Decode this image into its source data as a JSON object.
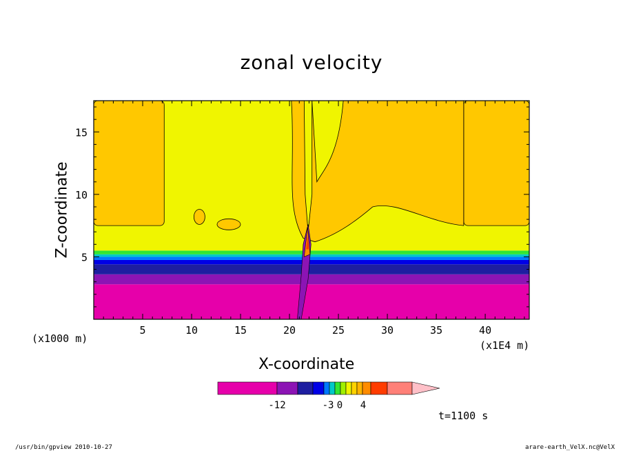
{
  "chart_data": {
    "type": "heatmap",
    "title": "zonal velocity",
    "xlabel": "X-coordinate",
    "ylabel": "Z-coordinate",
    "x_unit_left": "(x1000 m)",
    "x_unit_right": "(x1E4 m)",
    "xlim": [
      0,
      44.5
    ],
    "ylim": [
      0,
      17.5
    ],
    "x_ticks": [
      "5",
      "10",
      "15",
      "20",
      "25",
      "30",
      "35",
      "40"
    ],
    "y_ticks": [
      "5",
      "10",
      "15"
    ],
    "x_tick_values": [
      5,
      10,
      15,
      20,
      25,
      30,
      35,
      40
    ],
    "y_tick_values": [
      5,
      10,
      15
    ],
    "layers": [
      {
        "z_from": 0,
        "z_to": 2.8,
        "color": "#e600aa"
      },
      {
        "z_from": 2.8,
        "z_to": 3.6,
        "color": "#8c14b4"
      },
      {
        "z_from": 3.6,
        "z_to": 4.4,
        "color": "#1e1ea0"
      },
      {
        "z_from": 4.4,
        "z_to": 4.75,
        "color": "#0000e6"
      },
      {
        "z_from": 4.75,
        "z_to": 5.0,
        "color": "#0078ff"
      },
      {
        "z_from": 5.0,
        "z_to": 5.2,
        "color": "#00c8c8"
      },
      {
        "z_from": 5.2,
        "z_to": 5.5,
        "color": "#32e632"
      },
      {
        "z_from": 5.5,
        "z_to": 17.5,
        "color": "#f0f500"
      }
    ],
    "orange_regions": [
      {
        "x": [
          0,
          7.2
        ],
        "z": [
          7.5,
          17.5
        ]
      },
      {
        "x": [
          37.8,
          44.5
        ],
        "z": [
          7.5,
          17.5
        ]
      }
    ],
    "colorbar": {
      "colors": [
        "#e600aa",
        "#8c14b4",
        "#1e1ea0",
        "#0000e6",
        "#0078ff",
        "#00c8c8",
        "#32e632",
        "#a0f000",
        "#f0f500",
        "#ffd200",
        "#ffb400",
        "#ff8c00",
        "#ff3c00",
        "#ff8078",
        "#ffc0c8"
      ],
      "labels": [
        "-12",
        "-3",
        "0",
        "4"
      ]
    },
    "annotation": "t=1100 s"
  },
  "footer": {
    "left": "/usr/bin/gpview   2010-10-27",
    "right": "arare-earth_VelX.nc@VelX"
  }
}
